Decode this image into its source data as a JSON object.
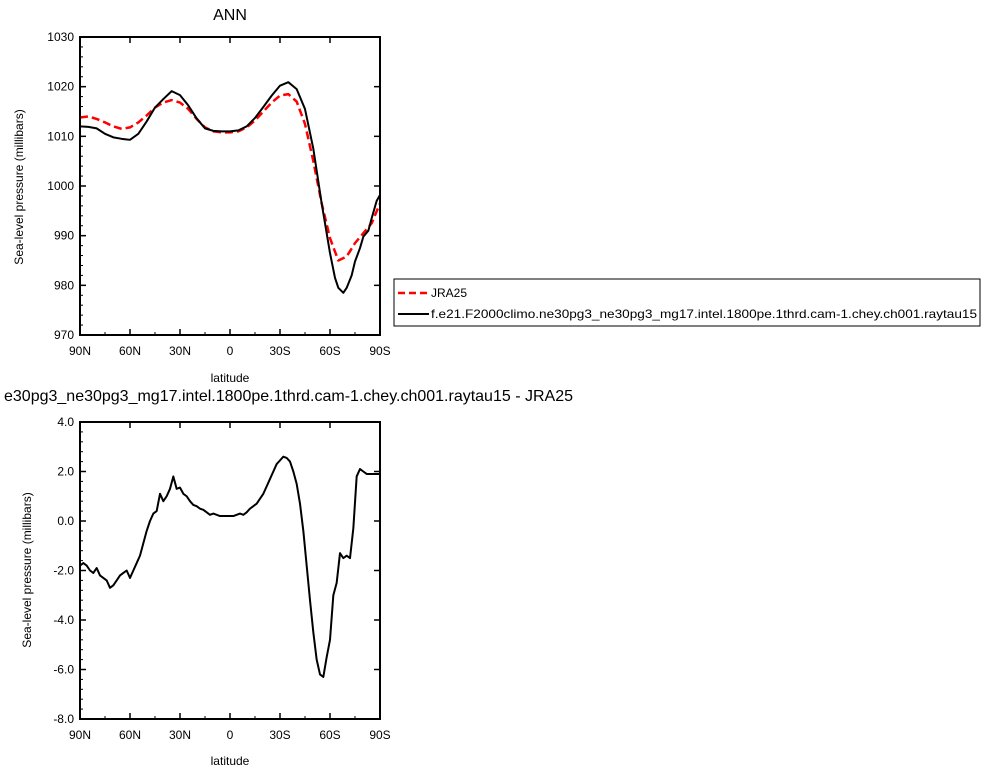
{
  "chart_data": [
    {
      "type": "line",
      "title": "ANN",
      "xlabel": "latitude",
      "ylabel": "Sea-level pressure (millibars)",
      "xlim": [
        90,
        -90
      ],
      "ylim": [
        970,
        1030
      ],
      "x_tick_values": [
        90,
        60,
        30,
        0,
        -30,
        -60,
        -90
      ],
      "x_tick_labels": [
        "90N",
        "60N",
        "30N",
        "0",
        "30S",
        "60S",
        "90S"
      ],
      "y_tick_values": [
        970,
        980,
        990,
        1000,
        1010,
        1020,
        1030
      ],
      "y_tick_labels": [
        "970",
        "980",
        "990",
        "1000",
        "1010",
        "1020",
        "1030"
      ],
      "legend": "right",
      "series": [
        {
          "name": "JRA25",
          "color": "#ff0000",
          "dash": "dashed",
          "x": [
            90,
            85,
            80,
            75,
            70,
            65,
            60,
            55,
            50,
            45,
            40,
            35,
            30,
            25,
            20,
            15,
            10,
            5,
            0,
            -5,
            -10,
            -15,
            -20,
            -25,
            -30,
            -35,
            -40,
            -45,
            -50,
            -55,
            -60,
            -65,
            -70,
            -75,
            -80,
            -85,
            -90
          ],
          "values": [
            1013.8,
            1014.0,
            1013.5,
            1012.8,
            1012.0,
            1011.5,
            1011.8,
            1012.8,
            1014.2,
            1015.8,
            1016.8,
            1017.3,
            1016.8,
            1015.5,
            1013.5,
            1011.8,
            1011.0,
            1010.8,
            1010.8,
            1011.0,
            1011.8,
            1013.2,
            1015.0,
            1016.8,
            1018.2,
            1018.5,
            1017.0,
            1012.5,
            1005.0,
            996.5,
            989.5,
            985.0,
            985.8,
            988.5,
            990.5,
            992.5,
            996.5
          ]
        },
        {
          "name": "f.e21.F2000climo.ne30pg3_ne30pg3_mg17.intel.1800pe.1thrd.cam-1.chey.ch001.raytau15",
          "color": "#000000",
          "dash": "solid",
          "x": [
            90,
            85,
            80,
            75,
            70,
            65,
            60,
            55,
            50,
            45,
            40,
            35,
            30,
            25,
            20,
            15,
            10,
            5,
            0,
            -5,
            -10,
            -15,
            -20,
            -25,
            -30,
            -35,
            -40,
            -45,
            -50,
            -55,
            -60,
            -63,
            -65,
            -68,
            -70,
            -73,
            -75,
            -78,
            -80,
            -83,
            -85,
            -88,
            -90
          ],
          "values": [
            1012.0,
            1011.9,
            1011.6,
            1010.5,
            1009.8,
            1009.5,
            1009.3,
            1010.5,
            1013.0,
            1015.8,
            1017.5,
            1019.1,
            1018.3,
            1016.2,
            1013.6,
            1011.6,
            1011.1,
            1011.0,
            1011.0,
            1011.2,
            1012.0,
            1013.7,
            1015.9,
            1018.2,
            1020.2,
            1020.9,
            1019.5,
            1015.5,
            1007.5,
            996.5,
            986.5,
            981.5,
            979.5,
            978.5,
            979.5,
            982.0,
            984.8,
            987.5,
            989.8,
            991.0,
            993.5,
            997.0,
            998.2
          ]
        }
      ]
    },
    {
      "type": "line",
      "title": "e30pg3_ne30pg3_mg17.intel.1800pe.1thrd.cam-1.chey.ch001.raytau15 - JRA25",
      "xlabel": "latitude",
      "ylabel": "Sea-level pressure (millibars)",
      "xlim": [
        90,
        -90
      ],
      "ylim": [
        -8,
        4
      ],
      "x_tick_values": [
        90,
        60,
        30,
        0,
        -30,
        -60,
        -90
      ],
      "x_tick_labels": [
        "90N",
        "60N",
        "30N",
        "0",
        "30S",
        "60S",
        "90S"
      ],
      "y_tick_values": [
        -8,
        -6,
        -4,
        -2,
        0,
        2,
        4
      ],
      "y_tick_labels": [
        "-8.0",
        "-6.0",
        "-4.0",
        "-2.0",
        "0.0",
        "2.0",
        "4.0"
      ],
      "series": [
        {
          "color": "#000000",
          "dash": "solid",
          "x": [
            90,
            88,
            86,
            84,
            82,
            80,
            78,
            76,
            74,
            72,
            70,
            68,
            66,
            64,
            62,
            60,
            58,
            56,
            54,
            52,
            50,
            48,
            46,
            44,
            42,
            40,
            38,
            36,
            34,
            32,
            30,
            28,
            26,
            24,
            22,
            20,
            18,
            16,
            14,
            12,
            10,
            8,
            6,
            4,
            2,
            0,
            -2,
            -4,
            -6,
            -8,
            -10,
            -12,
            -14,
            -16,
            -18,
            -20,
            -22,
            -24,
            -26,
            -28,
            -30,
            -32,
            -34,
            -36,
            -38,
            -40,
            -42,
            -44,
            -46,
            -48,
            -50,
            -52,
            -54,
            -56,
            -58,
            -60,
            -62,
            -64,
            -66,
            -68,
            -70,
            -72,
            -74,
            -76,
            -78,
            -80,
            -82,
            -84,
            -86,
            -88,
            -90
          ],
          "values": [
            -1.8,
            -1.7,
            -1.8,
            -2.0,
            -2.1,
            -1.9,
            -2.2,
            -2.3,
            -2.4,
            -2.7,
            -2.6,
            -2.4,
            -2.2,
            -2.1,
            -2.0,
            -2.3,
            -2.0,
            -1.7,
            -1.4,
            -0.9,
            -0.4,
            0.0,
            0.3,
            0.4,
            1.1,
            0.8,
            1.0,
            1.3,
            1.8,
            1.3,
            1.35,
            1.1,
            1.0,
            0.8,
            0.65,
            0.6,
            0.5,
            0.45,
            0.35,
            0.25,
            0.3,
            0.25,
            0.2,
            0.2,
            0.2,
            0.2,
            0.2,
            0.25,
            0.3,
            0.25,
            0.35,
            0.5,
            0.6,
            0.7,
            0.9,
            1.1,
            1.4,
            1.7,
            2.0,
            2.3,
            2.45,
            2.6,
            2.55,
            2.4,
            2.0,
            1.5,
            0.7,
            -0.4,
            -1.8,
            -3.2,
            -4.5,
            -5.6,
            -6.2,
            -6.3,
            -5.5,
            -4.8,
            -3.0,
            -2.5,
            -1.3,
            -1.5,
            -1.4,
            -1.5,
            -0.3,
            1.8,
            2.1,
            2.0,
            1.9,
            1.9,
            1.9,
            1.9,
            1.9
          ]
        }
      ]
    }
  ]
}
